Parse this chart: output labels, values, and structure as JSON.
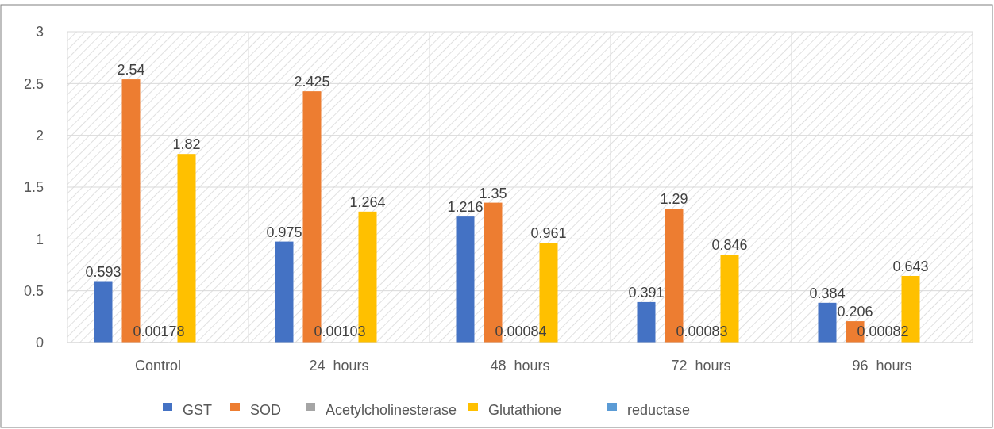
{
  "chart_data": {
    "type": "bar",
    "categories": [
      "Control",
      "24  hours",
      "48  hours",
      "72  hours",
      "96  hours"
    ],
    "series": [
      {
        "name": "GST",
        "color": "#4472c4",
        "values": [
          0.593,
          0.975,
          1.216,
          0.391,
          0.384
        ]
      },
      {
        "name": "SOD",
        "color": "#ed7d31",
        "values": [
          2.54,
          2.425,
          1.35,
          1.29,
          0.206
        ]
      },
      {
        "name": "Acetylcholinesterase",
        "color": "#a5a5a5",
        "values": [
          0.00178,
          0.00103,
          0.00084,
          0.00083,
          0.00082
        ]
      },
      {
        "name": "Glutathione",
        "color": "#ffc000",
        "values": [
          1.82,
          1.264,
          0.961,
          0.846,
          0.643
        ]
      },
      {
        "name": "reductase",
        "color": "#5b9bd5",
        "values": [
          null,
          null,
          null,
          null,
          null
        ]
      }
    ],
    "ylim": [
      0,
      3
    ],
    "yticks": [
      0,
      0.5,
      1,
      1.5,
      2,
      2.5,
      3
    ],
    "grid": true,
    "legend": "bottom",
    "data_labels": true
  }
}
